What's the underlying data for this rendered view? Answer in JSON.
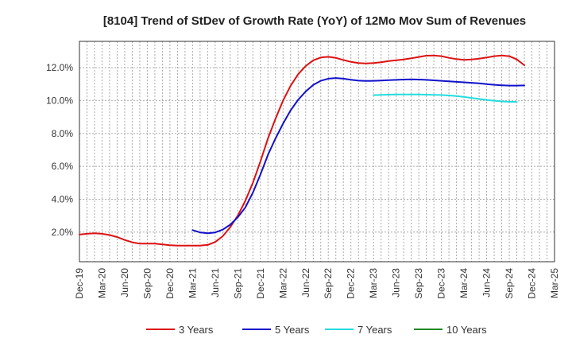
{
  "chart_data": {
    "type": "line",
    "title": "[8104]  Trend of StDev of Growth Rate (YoY) of 12Mo Mov Sum of Revenues",
    "xlabel": "",
    "ylabel": "",
    "ylim": [
      0.2,
      13.6
    ],
    "y_ticks": [
      2.0,
      4.0,
      6.0,
      8.0,
      10.0,
      12.0
    ],
    "y_tick_labels": [
      "2.0%",
      "4.0%",
      "6.0%",
      "8.0%",
      "10.0%",
      "12.0%"
    ],
    "x_tick_labels": [
      "Dec-19",
      "Mar-20",
      "Jun-20",
      "Sep-20",
      "Dec-20",
      "Mar-21",
      "Jun-21",
      "Sep-21",
      "Dec-21",
      "Mar-22",
      "Jun-22",
      "Sep-22",
      "Dec-22",
      "Mar-23",
      "Jun-23",
      "Sep-23",
      "Dec-23",
      "Mar-24",
      "Jun-24",
      "Sep-24",
      "Dec-24",
      "Mar-25"
    ],
    "grid": true,
    "legend_position": "bottom",
    "series": [
      {
        "name": "3 Years",
        "color": "#dd1111",
        "start_index": 0,
        "values": [
          1.85,
          1.9,
          1.93,
          1.9,
          1.82,
          1.7,
          1.52,
          1.38,
          1.3,
          1.3,
          1.3,
          1.25,
          1.2,
          1.18,
          1.18,
          1.18,
          1.18,
          1.22,
          1.4,
          1.75,
          2.3,
          3.0,
          3.9,
          5.0,
          6.3,
          7.7,
          8.9,
          10.0,
          10.9,
          11.6,
          12.1,
          12.45,
          12.62,
          12.66,
          12.6,
          12.47,
          12.35,
          12.28,
          12.26,
          12.28,
          12.33,
          12.4,
          12.45,
          12.5,
          12.57,
          12.65,
          12.73,
          12.74,
          12.7,
          12.6,
          12.52,
          12.48,
          12.5,
          12.55,
          12.62,
          12.7,
          12.74,
          12.7,
          12.5,
          12.15
        ]
      },
      {
        "name": "5 Years",
        "color": "#1111cc",
        "start_index": 15,
        "values": [
          2.12,
          1.98,
          1.93,
          1.98,
          2.15,
          2.45,
          2.9,
          3.5,
          4.4,
          5.5,
          6.7,
          7.7,
          8.6,
          9.4,
          10.05,
          10.55,
          10.95,
          11.2,
          11.33,
          11.37,
          11.33,
          11.27,
          11.21,
          11.19,
          11.2,
          11.22,
          11.24,
          11.26,
          11.28,
          11.29,
          11.28,
          11.26,
          11.23,
          11.2,
          11.17,
          11.14,
          11.11,
          11.08,
          11.05,
          11.0,
          10.96,
          10.93,
          10.91,
          10.91,
          10.92
        ]
      },
      {
        "name": "7 Years",
        "color": "#22dddd",
        "start_index": 39,
        "values": [
          10.33,
          10.35,
          10.36,
          10.37,
          10.37,
          10.37,
          10.37,
          10.36,
          10.35,
          10.34,
          10.31,
          10.27,
          10.22,
          10.16,
          10.1,
          10.04,
          9.99,
          9.95,
          9.93,
          9.92
        ]
      },
      {
        "name": "10 Years",
        "color": "#228822",
        "start_index": 0,
        "values": []
      }
    ]
  }
}
